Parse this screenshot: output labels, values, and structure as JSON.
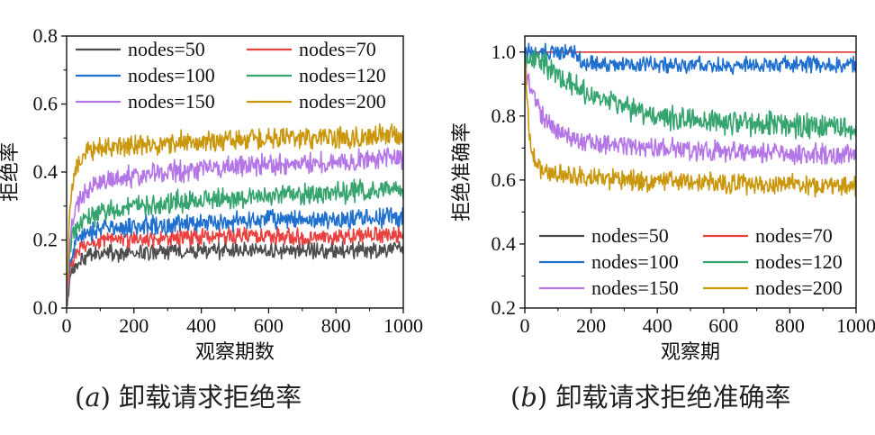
{
  "colors": {
    "nodes=50": "#4d4d4d",
    "nodes=70": "#e8413f",
    "nodes=100": "#1e6fce",
    "nodes=120": "#35a46e",
    "nodes=150": "#b476e6",
    "nodes=200": "#c9960c"
  },
  "captions": {
    "a": {
      "prefix": "(",
      "sub": "a",
      "suffix": ")",
      "text": "卸载请求拒绝率"
    },
    "b": {
      "prefix": "(",
      "sub": "b",
      "suffix": ")",
      "text": "卸载请求拒绝准确率"
    }
  },
  "chart_data": [
    {
      "type": "line",
      "xlabel": "观察期数",
      "ylabel": "拒绝率",
      "xlim": [
        0,
        1000
      ],
      "ylim": [
        0,
        0.8
      ],
      "xticks": [
        0,
        200,
        400,
        600,
        800,
        1000
      ],
      "yticks": [
        0.0,
        0.2,
        0.4,
        0.6,
        0.8
      ],
      "ytick_labels": [
        "0.0",
        "0.2",
        "0.4",
        "0.6",
        "0.8"
      ],
      "grid": false,
      "legend_position": "top",
      "legend_columns": 2,
      "note": "noisy per-period curves; values approximate series mean trend with amplitude of fluctuation",
      "series": [
        {
          "name": "nodes=50",
          "x": [
            0,
            10,
            30,
            60,
            100,
            200,
            400,
            600,
            800,
            1000
          ],
          "y": [
            0.0,
            0.08,
            0.13,
            0.15,
            0.16,
            0.16,
            0.17,
            0.17,
            0.17,
            0.17
          ],
          "noise": 0.02
        },
        {
          "name": "nodes=70",
          "x": [
            0,
            10,
            30,
            60,
            100,
            200,
            400,
            600,
            800,
            1000
          ],
          "y": [
            0.0,
            0.12,
            0.17,
            0.19,
            0.2,
            0.2,
            0.21,
            0.21,
            0.21,
            0.22
          ],
          "noise": 0.02
        },
        {
          "name": "nodes=100",
          "x": [
            0,
            10,
            30,
            60,
            100,
            200,
            400,
            600,
            800,
            1000
          ],
          "y": [
            0.0,
            0.15,
            0.2,
            0.22,
            0.23,
            0.24,
            0.25,
            0.26,
            0.26,
            0.27
          ],
          "noise": 0.022
        },
        {
          "name": "nodes=120",
          "x": [
            0,
            10,
            30,
            60,
            100,
            200,
            400,
            600,
            800,
            1000
          ],
          "y": [
            0.0,
            0.18,
            0.24,
            0.27,
            0.28,
            0.3,
            0.32,
            0.33,
            0.34,
            0.35
          ],
          "noise": 0.025
        },
        {
          "name": "nodes=150",
          "x": [
            0,
            10,
            30,
            60,
            100,
            200,
            400,
            600,
            800,
            1000
          ],
          "y": [
            0.0,
            0.22,
            0.3,
            0.35,
            0.37,
            0.39,
            0.41,
            0.42,
            0.43,
            0.44
          ],
          "noise": 0.025
        },
        {
          "name": "nodes=200",
          "x": [
            0,
            10,
            30,
            60,
            100,
            200,
            400,
            600,
            800,
            1000
          ],
          "y": [
            0.0,
            0.32,
            0.42,
            0.46,
            0.47,
            0.48,
            0.49,
            0.5,
            0.5,
            0.51
          ],
          "noise": 0.025
        }
      ]
    },
    {
      "type": "line",
      "xlabel": "观察期",
      "ylabel": "拒绝准确率",
      "xlim": [
        0,
        1000
      ],
      "ylim": [
        0.2,
        1.05
      ],
      "xticks": [
        0,
        200,
        400,
        600,
        800,
        1000
      ],
      "yticks": [
        0.2,
        0.4,
        0.6,
        0.8,
        1.0
      ],
      "ytick_labels": [
        "0.2",
        "0.4",
        "0.6",
        "0.8",
        "1.0"
      ],
      "grid": false,
      "legend_position": "bottom",
      "legend_columns": 2,
      "series": [
        {
          "name": "nodes=50",
          "x": [
            0,
            1000
          ],
          "y": [
            1.0,
            1.0
          ],
          "noise": 0
        },
        {
          "name": "nodes=70",
          "x": [
            0,
            1000
          ],
          "y": [
            1.0,
            1.0
          ],
          "noise": 0
        },
        {
          "name": "nodes=100",
          "x": [
            0,
            150,
            170,
            200,
            400,
            600,
            800,
            1000
          ],
          "y": [
            1.0,
            1.0,
            0.97,
            0.96,
            0.96,
            0.96,
            0.96,
            0.96
          ],
          "noise": 0.02
        },
        {
          "name": "nodes=120",
          "x": [
            0,
            50,
            100,
            200,
            300,
            400,
            600,
            800,
            1000
          ],
          "y": [
            0.98,
            0.97,
            0.93,
            0.86,
            0.83,
            0.8,
            0.78,
            0.77,
            0.76
          ],
          "noise": 0.03
        },
        {
          "name": "nodes=150",
          "x": [
            0,
            20,
            50,
            100,
            200,
            400,
            600,
            800,
            1000
          ],
          "y": [
            0.95,
            0.88,
            0.8,
            0.75,
            0.72,
            0.7,
            0.69,
            0.68,
            0.68
          ],
          "noise": 0.025
        },
        {
          "name": "nodes=200",
          "x": [
            0,
            10,
            20,
            40,
            80,
            150,
            300,
            600,
            1000
          ],
          "y": [
            0.98,
            0.8,
            0.68,
            0.64,
            0.62,
            0.61,
            0.6,
            0.59,
            0.58
          ],
          "noise": 0.025
        }
      ]
    }
  ]
}
